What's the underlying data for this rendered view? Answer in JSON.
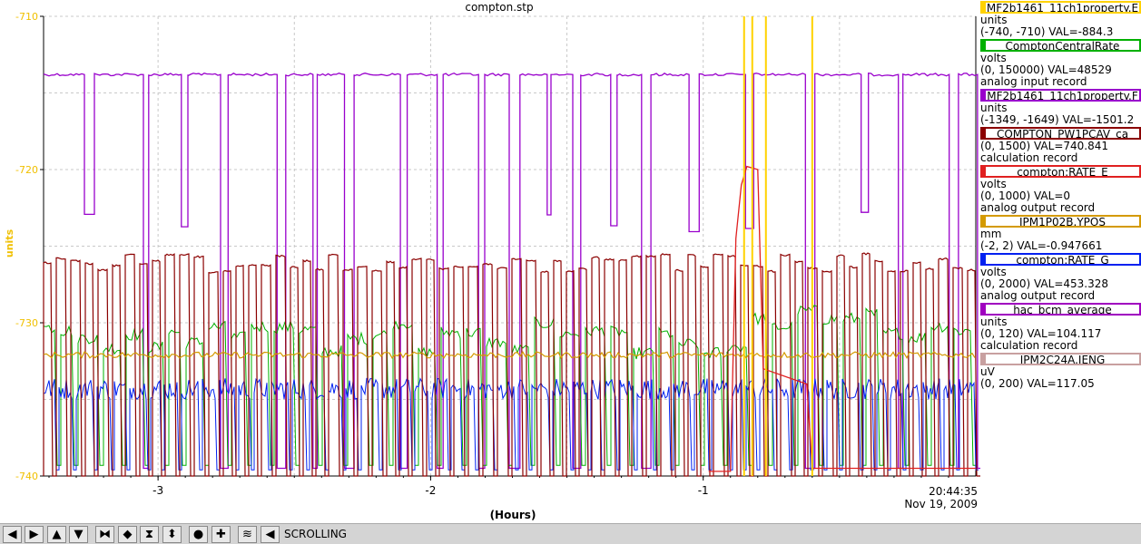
{
  "window": {
    "title": "compton.stp"
  },
  "chart_data": {
    "type": "line",
    "title": "compton.stp",
    "ylabel": "units",
    "xlabel": "(Hours)",
    "ylim": [
      -740,
      -710
    ],
    "xlim": [
      -3.42,
      0
    ],
    "yticks": [
      "-710",
      "-720",
      "-730",
      "-740"
    ],
    "xticks": [
      "-3",
      "-2",
      "-1"
    ],
    "grid": true,
    "end_time": "20:44:35",
    "end_date": "Nov 19, 2009",
    "axis_color": "#f0c000",
    "series": [
      {
        "name": "MF2b1461_11ch1property.E",
        "color": "#ffd200"
      },
      {
        "name": "ComptonCentralRate",
        "color": "#00b000"
      },
      {
        "name": "MF2b1461_11ch1property.F",
        "color": "#9900cc"
      },
      {
        "name": "COMPTON_PW1PCAV_ca",
        "color": "#8b0000"
      },
      {
        "name": "compton:RATE_E",
        "color": "#e02020"
      },
      {
        "name": "IPM1P02B.YPOS",
        "color": "#d49a00"
      },
      {
        "name": "compton:RATE_G",
        "color": "#0020f0"
      },
      {
        "name": "hac_bcm_average",
        "color": "#a000c0"
      },
      {
        "name": "IPM2C24A.IENG",
        "color": "#c8a0a0"
      }
    ]
  },
  "legend": [
    {
      "name": "MF2b1461_11ch1property.E",
      "color": "#ffd200",
      "lines": [
        "units",
        "(-740, -710) VAL=-884.3"
      ]
    },
    {
      "name": "ComptonCentralRate",
      "color": "#00b000",
      "lines": [
        "volts",
        "(0, 150000) VAL=48529",
        "analog input record"
      ]
    },
    {
      "name": "MF2b1461_11ch1property.F",
      "color": "#9900cc",
      "lines": [
        "units",
        "(-1349, -1649) VAL=-1501.2"
      ]
    },
    {
      "name": "COMPTON_PW1PCAV_ca",
      "color": "#8b0000",
      "lines": [
        "(0, 1500) VAL=740.841",
        "calculation record"
      ]
    },
    {
      "name": "compton:RATE_E",
      "color": "#e02020",
      "lines": [
        "volts",
        "(0, 1000) VAL=0",
        "analog output record"
      ]
    },
    {
      "name": "IPM1P02B.YPOS",
      "color": "#d49a00",
      "lines": [
        "mm",
        "(-2, 2) VAL=-0.947661"
      ]
    },
    {
      "name": "compton:RATE_G",
      "color": "#0020f0",
      "lines": [
        "volts",
        "(0, 2000) VAL=453.328",
        "analog output record"
      ]
    },
    {
      "name": "hac_bcm_average",
      "color": "#a000c0",
      "lines": [
        "units",
        "(0, 120) VAL=104.117",
        "calculation record"
      ]
    },
    {
      "name": "IPM2C24A.IENG",
      "color": "#c8a0a0",
      "lines": [
        "uV",
        "(0, 200) VAL=117.05"
      ]
    }
  ],
  "toolbar": {
    "buttons": [
      {
        "name": "pan-left-icon",
        "glyph": "◀"
      },
      {
        "name": "pan-right-icon",
        "glyph": "▶"
      },
      {
        "name": "pan-up-icon",
        "glyph": "▲"
      },
      {
        "name": "pan-down-icon",
        "glyph": "▼"
      },
      {
        "name": "zoom-in-x-icon",
        "glyph": "⧓"
      },
      {
        "name": "zoom-out-x-icon",
        "glyph": "◆"
      },
      {
        "name": "zoom-in-y-icon",
        "glyph": "⧗"
      },
      {
        "name": "zoom-out-y-icon",
        "glyph": "⬍"
      },
      {
        "name": "autoscale-icon",
        "glyph": "●"
      },
      {
        "name": "crosshair-icon",
        "glyph": "✚"
      },
      {
        "name": "scroll-icon",
        "glyph": "≋"
      },
      {
        "name": "back-icon",
        "glyph": "◀"
      }
    ],
    "status": "SCROLLING"
  }
}
